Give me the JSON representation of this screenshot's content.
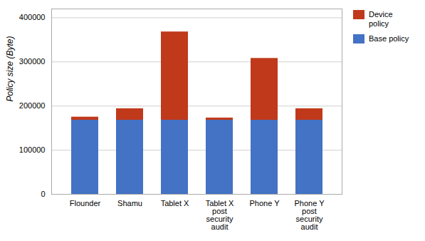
{
  "chart_data": {
    "type": "bar",
    "stacked": true,
    "categories": [
      "Flounder",
      "Shamu",
      "Tablet X",
      "Tablet X\npost\nsecurity\naudit",
      "Phone Y",
      "Phone Y\npost\nsecurity\naudit"
    ],
    "series": [
      {
        "name": "Base policy",
        "color": "#4472c4",
        "values": [
          168000,
          168000,
          168000,
          168000,
          168000,
          168000
        ]
      },
      {
        "name": "Device\npolicy",
        "color": "#c0391b",
        "values": [
          7000,
          26000,
          200000,
          5000,
          140000,
          26000
        ]
      }
    ],
    "ylabel": "Policy size (Byte)",
    "ylim": [
      0,
      420000
    ],
    "yticks": [
      0,
      100000,
      200000,
      300000,
      400000
    ],
    "grid": true,
    "legend": "upper right"
  }
}
